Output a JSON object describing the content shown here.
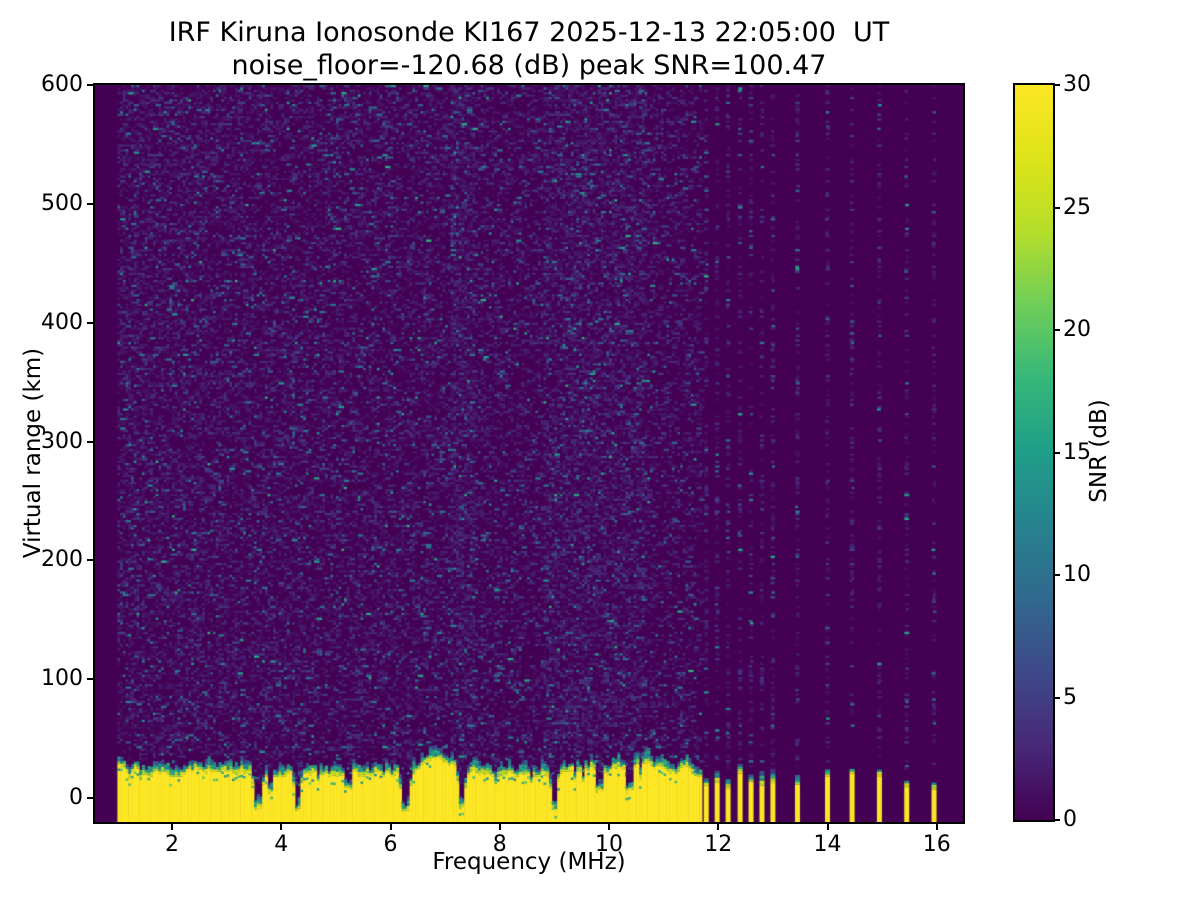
{
  "title": {
    "line1": "IRF Kiruna Ionosonde KI167 2025-12-13 22:05:00  UT",
    "line2": "noise_floor=-120.68 (dB) peak SNR=100.47"
  },
  "chart_data": {
    "type": "heatmap",
    "title": "IRF Kiruna Ionosonde KI167 2025-12-13 22:05:00  UT",
    "subtitle": "noise_floor=-120.68 (dB) peak SNR=100.47",
    "xlabel": "Frequency (MHz)",
    "ylabel": "Virtual range (km)",
    "xlim": [
      0.59,
      16.48
    ],
    "ylim": [
      -20,
      600
    ],
    "xticks": [
      2,
      4,
      6,
      8,
      10,
      12,
      14,
      16
    ],
    "yticks": [
      0,
      100,
      200,
      300,
      400,
      500,
      600
    ],
    "grid": false,
    "legend": "none",
    "colorbar": {
      "label": "SNR (dB)",
      "min": 0,
      "max": 30,
      "ticks": [
        0,
        5,
        10,
        15,
        20,
        25,
        30
      ]
    },
    "colormap": {
      "name": "viridis",
      "stops": [
        [
          0,
          "#440154"
        ],
        [
          0.1,
          "#482878"
        ],
        [
          0.2,
          "#3e4989"
        ],
        [
          0.3,
          "#31688e"
        ],
        [
          0.4,
          "#26828e"
        ],
        [
          0.5,
          "#1f9e89"
        ],
        [
          0.6,
          "#35b779"
        ],
        [
          0.7,
          "#6ece58"
        ],
        [
          0.8,
          "#b5de2b"
        ],
        [
          0.9,
          "#dde318"
        ],
        [
          1,
          "#fde725"
        ]
      ]
    },
    "heatmap": {
      "seed": 167,
      "freq_start_mhz": 1.0,
      "freq_step_mhz": 0.05,
      "continuous_sweep_end_mhz": 11.67,
      "stepped_freqs_mhz": [
        11.78,
        11.98,
        12.18,
        12.4,
        12.6,
        12.8,
        13.0,
        13.45,
        14.0,
        14.45,
        14.95,
        15.45,
        15.95
      ],
      "range_resolution_km": 2,
      "background_snr_db": 0,
      "ground_clutter_snr_db": 30,
      "ground_clutter_top_km_mean": 26,
      "ground_clutter_top_km_min": 18,
      "ground_clutter_top_km_max": 34,
      "notches": [
        {
          "f": 3.55,
          "deep": true
        },
        {
          "f": 3.77,
          "deep": false
        },
        {
          "f": 4.27,
          "deep": true
        },
        {
          "f": 5.2,
          "deep": false
        },
        {
          "f": 6.25,
          "deep": true
        },
        {
          "f": 7.27,
          "deep": true
        },
        {
          "f": 8.97,
          "deep": true
        },
        {
          "f": 9.8,
          "deep": false
        },
        {
          "f": 10.35,
          "deep": false
        }
      ],
      "noise_speckle_prob_low_freq": 0.42,
      "noise_speckle_prob_high_freq": 0.25,
      "stepped_column_noise_prob": 0.33,
      "dense_noise_freqs_mhz": [
        7.3,
        9.0,
        9.35,
        9.7,
        10.05,
        10.4
      ]
    }
  }
}
